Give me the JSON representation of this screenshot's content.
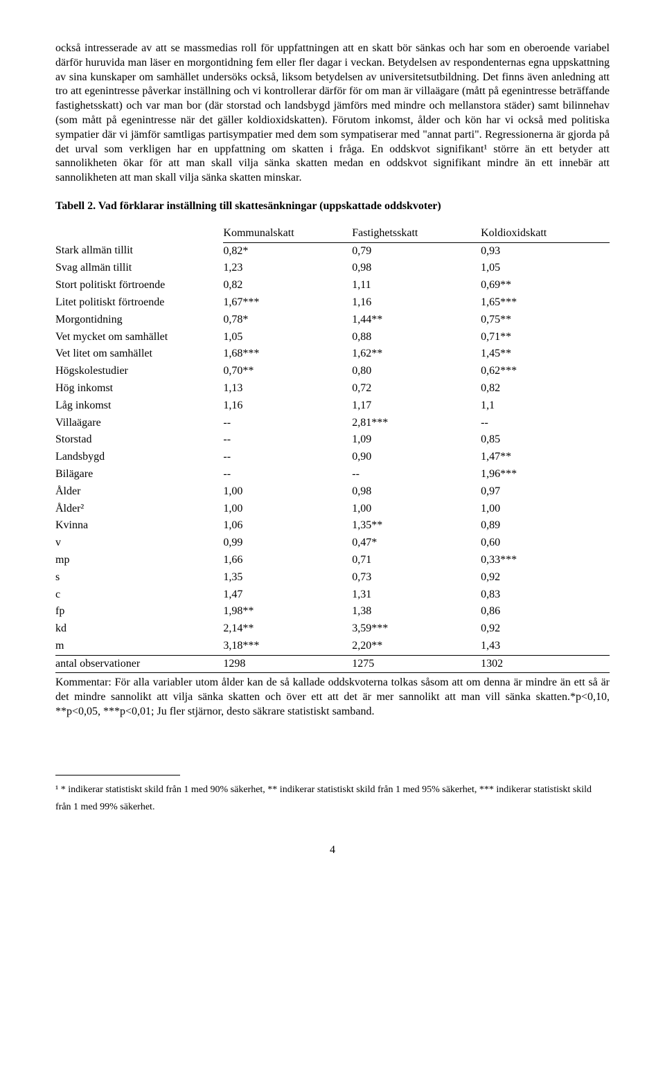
{
  "paragraph": "också intresserade av att se massmedias roll för uppfattningen att en skatt bör sänkas och har som en oberoende variabel därför huruvida man läser en morgontidning fem eller fler dagar i veckan. Betydelsen av respondenternas egna uppskattning av sina kunskaper om samhället undersöks också, liksom betydelsen av universitetsutbildning. Det finns även anledning att tro att egenintresse påverkar inställning och vi kontrollerar därför för om man är villaägare (mått på egenintresse beträffande fastighetsskatt) och var man bor (där storstad och landsbygd jämförs med mindre och mellanstora städer) samt bilinnehav (som mått på egenintresse när det gäller koldioxidskatten). Förutom inkomst, ålder och kön har vi också med politiska sympatier där vi jämför samtligas partisympatier med dem som sympatiserar med \"annat parti\". Regressionerna är gjorda på det urval som verkligen har en uppfattning om skatten i fråga. En oddskvot signifikant¹ större än ett betyder att sannolikheten ökar för att man skall vilja sänka skatten medan en oddskvot signifikant mindre än ett innebär att sannolikheten att man skall vilja sänka skatten minskar.",
  "table_title": "Tabell 2. Vad förklarar inställning till skattesänkningar (uppskattade oddskvoter)",
  "table": {
    "columns": [
      "",
      "Kommunalskatt",
      "Fastighetsskatt",
      "Koldioxidskatt"
    ],
    "rows": [
      [
        "Stark allmän tillit",
        "0,82*",
        "0,79",
        "0,93"
      ],
      [
        "Svag allmän tillit",
        "1,23",
        "0,98",
        "1,05"
      ],
      [
        "Stort politiskt förtroende",
        "0,82",
        "1,11",
        "0,69**"
      ],
      [
        "Litet politiskt förtroende",
        "1,67***",
        "1,16",
        "1,65***"
      ],
      [
        "Morgontidning",
        "0,78*",
        "1,44**",
        "0,75**"
      ],
      [
        "Vet mycket om samhället",
        "1,05",
        "0,88",
        "0,71**"
      ],
      [
        "Vet litet om samhället",
        "1,68***",
        "1,62**",
        "1,45**"
      ],
      [
        "Högskolestudier",
        "0,70**",
        "0,80",
        "0,62***"
      ],
      [
        "Hög inkomst",
        "1,13",
        "0,72",
        "0,82"
      ],
      [
        "Låg inkomst",
        "1,16",
        "1,17",
        "1,1"
      ],
      [
        "Villaägare",
        "--",
        "2,81***",
        "--"
      ],
      [
        "Storstad",
        "--",
        "1,09",
        "0,85"
      ],
      [
        "Landsbygd",
        "--",
        "0,90",
        "1,47**"
      ],
      [
        "Bilägare",
        "--",
        "--",
        "1,96***"
      ],
      [
        "Ålder",
        "1,00",
        "0,98",
        "0,97"
      ],
      [
        "Ålder²",
        "1,00",
        "1,00",
        "1,00"
      ],
      [
        "Kvinna",
        "1,06",
        "1,35**",
        "0,89"
      ],
      [
        "v",
        "0,99",
        "0,47*",
        "0,60"
      ],
      [
        "mp",
        "1,66",
        "0,71",
        "0,33***"
      ],
      [
        "s",
        "1,35",
        "0,73",
        "0,92"
      ],
      [
        "c",
        "1,47",
        "1,31",
        "0,83"
      ],
      [
        "fp",
        "1,98**",
        "1,38",
        "0,86"
      ],
      [
        "kd",
        "2,14**",
        "3,59***",
        "0,92"
      ],
      [
        "m",
        "3,18***",
        "2,20**",
        "1,43"
      ],
      [
        "antal observationer",
        "1298",
        "1275",
        "1302"
      ]
    ]
  },
  "comment": "Kommentar: För alla variabler utom ålder kan de så kallade oddskvoterna tolkas såsom att om denna är mindre än ett så är det mindre sannolikt att vilja sänka skatten och över ett att det är mer sannolikt att man vill sänka skatten.*p<0,10, **p<0,05, ***p<0,01; Ju fler stjärnor, desto säkrare statistiskt samband.",
  "footnote": "¹ * indikerar statistiskt skild från 1 med 90% säkerhet, ** indikerar statistiskt skild från 1 med 95% säkerhet, *** indikerar statistiskt skild från 1 med 99% säkerhet.",
  "page_number": "4"
}
